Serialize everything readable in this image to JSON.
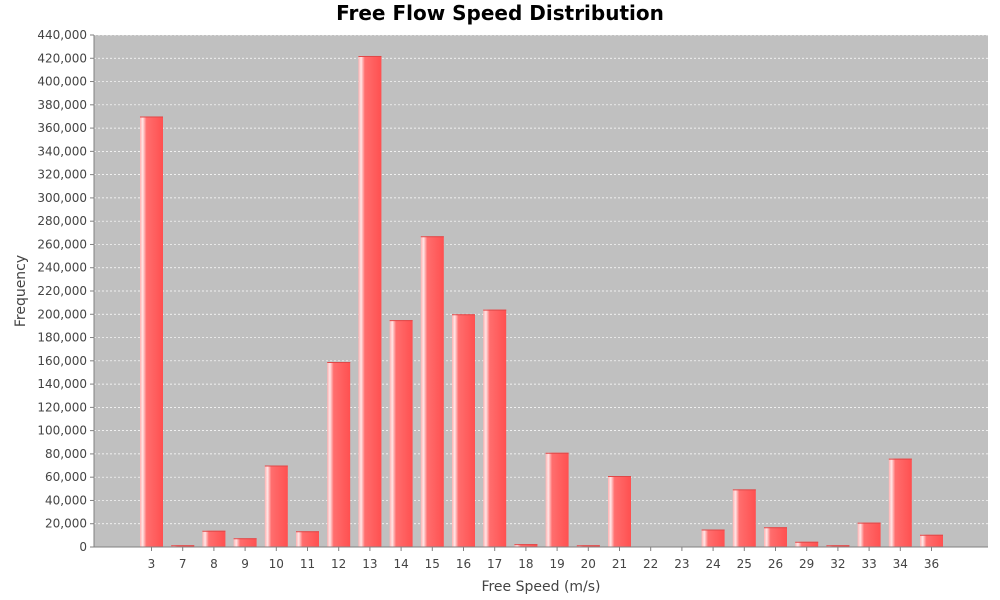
{
  "chart_data": {
    "type": "bar",
    "title": "Free Flow Speed Distribution",
    "xlabel": "Free Speed (m/s)",
    "ylabel": "Frequency",
    "categories": [
      "3",
      "7",
      "8",
      "9",
      "10",
      "11",
      "12",
      "13",
      "14",
      "15",
      "16",
      "17",
      "18",
      "19",
      "20",
      "21",
      "22",
      "23",
      "24",
      "25",
      "26",
      "29",
      "32",
      "33",
      "34",
      "36"
    ],
    "values": [
      370000,
      1500,
      14000,
      7500,
      70000,
      13500,
      159000,
      422000,
      195000,
      267000,
      200000,
      204000,
      2500,
      81000,
      1500,
      61000,
      0,
      0,
      15000,
      49500,
      17000,
      4500,
      1500,
      21000,
      76000,
      10500
    ],
    "ylim": [
      0,
      440000
    ],
    "ytick_step": 20000,
    "grid": true,
    "colors": {
      "plot_background": "#c0c0c0",
      "bar": "#ff5a5a",
      "grid": "#ffffff",
      "axis": "#808080"
    }
  }
}
